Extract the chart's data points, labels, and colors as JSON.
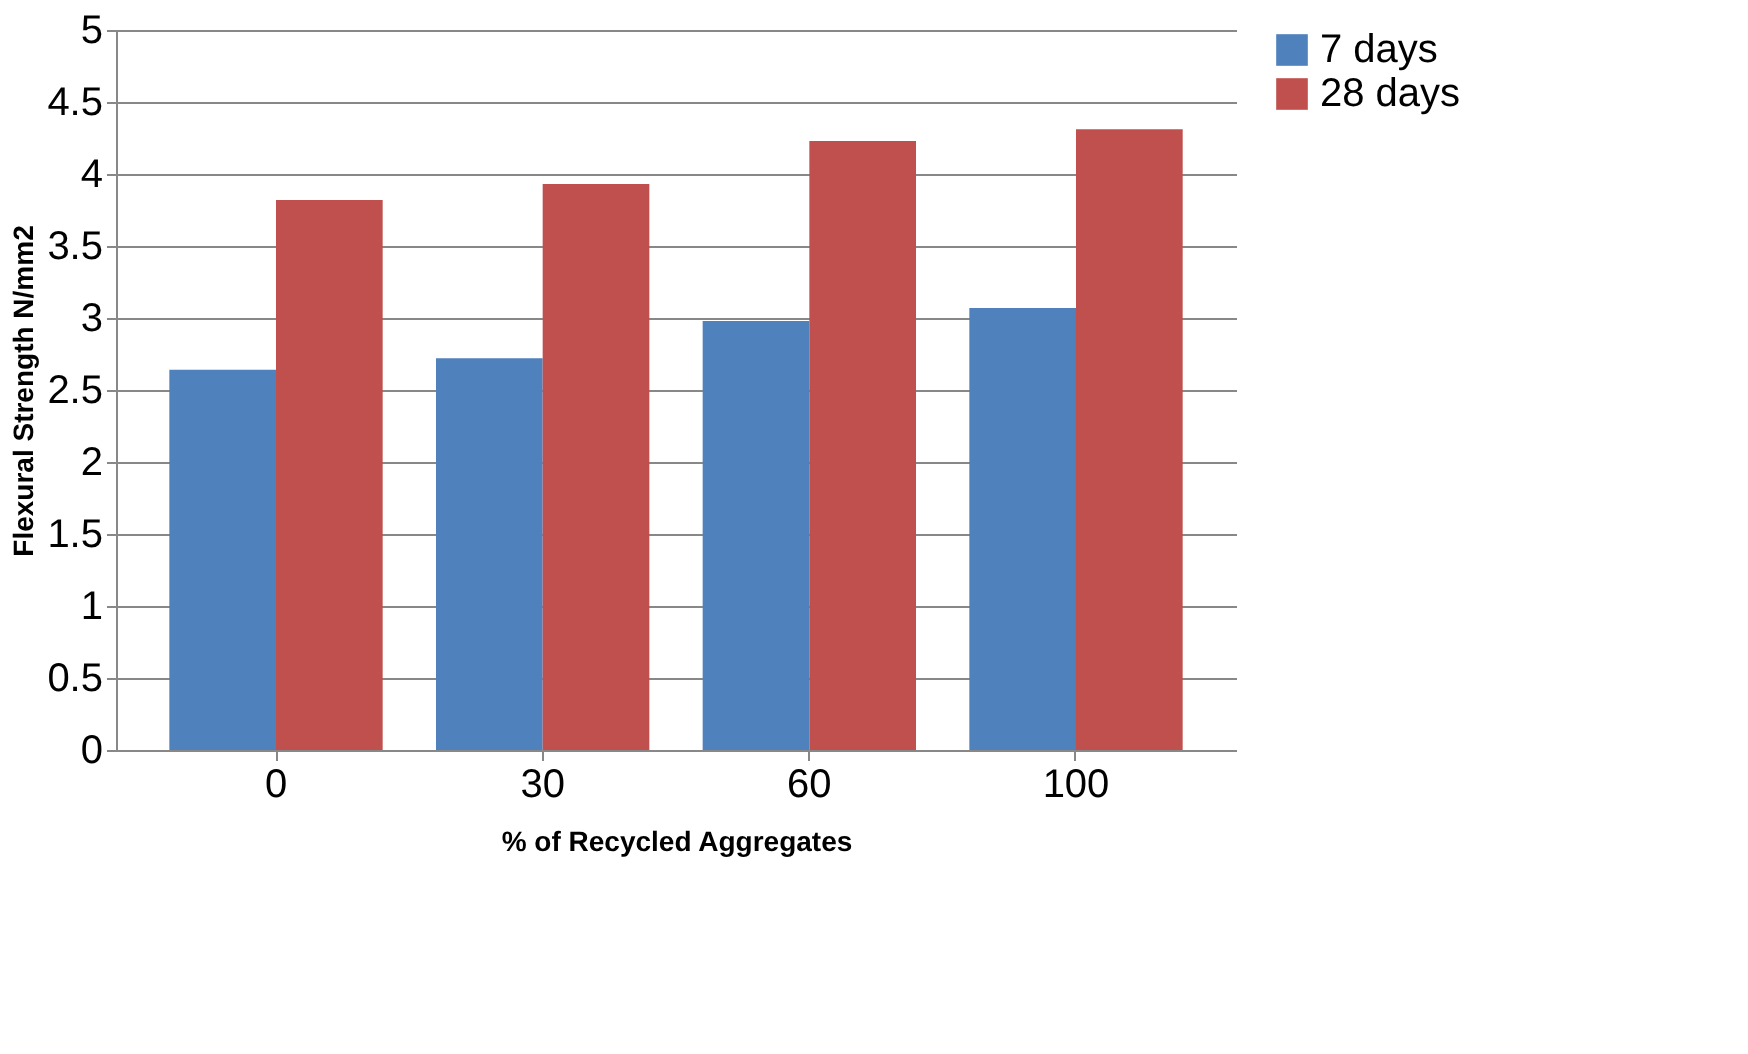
{
  "chart_data": {
    "type": "bar",
    "xlabel": "%  of Recycled Aggregates",
    "ylabel": "Flexural Strength N/mm2",
    "categories": [
      "0",
      "30",
      "60",
      "100"
    ],
    "series": [
      {
        "name": "7 days",
        "color": "#4f81bd",
        "values": [
          2.64,
          2.72,
          2.98,
          3.07
        ]
      },
      {
        "name": "28 days",
        "color": "#c0504d",
        "values": [
          3.82,
          3.93,
          4.23,
          4.31
        ]
      }
    ],
    "ylim": [
      0,
      5
    ],
    "yticks": [
      0,
      0.5,
      1,
      1.5,
      2,
      2.5,
      3,
      3.5,
      4,
      4.5,
      5
    ],
    "grid": "y",
    "legend": "right"
  }
}
